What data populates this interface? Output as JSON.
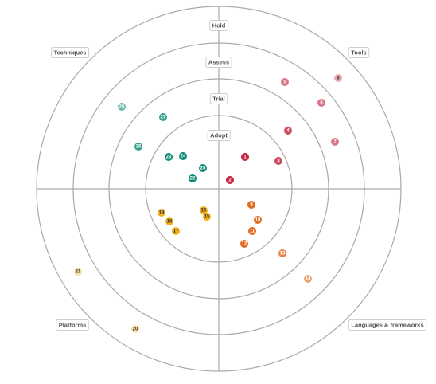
{
  "rings": [
    "Adopt",
    "Trial",
    "Assess",
    "Hold"
  ],
  "quadrants": [
    {
      "name": "Tools",
      "color": "#c4223a"
    },
    {
      "name": "Languages & frameworks",
      "color": "#e06a1f"
    },
    {
      "name": "Platforms",
      "color": "#f2ae1b"
    },
    {
      "name": "Techniques",
      "color": "#0b8b74"
    }
  ],
  "blips": [
    {
      "id": "1",
      "quadrant": "Tools",
      "ring": "Adopt"
    },
    {
      "id": "2",
      "quadrant": "Tools",
      "ring": "Adopt"
    },
    {
      "id": "3",
      "quadrant": "Tools",
      "ring": "Trial"
    },
    {
      "id": "4",
      "quadrant": "Tools",
      "ring": "Trial"
    },
    {
      "id": "5",
      "quadrant": "Tools",
      "ring": "Assess"
    },
    {
      "id": "6",
      "quadrant": "Tools",
      "ring": "Assess"
    },
    {
      "id": "7",
      "quadrant": "Tools",
      "ring": "Assess"
    },
    {
      "id": "8",
      "quadrant": "Tools",
      "ring": "Hold"
    },
    {
      "id": "9",
      "quadrant": "Languages & frameworks",
      "ring": "Adopt"
    },
    {
      "id": "10",
      "quadrant": "Languages & frameworks",
      "ring": "Adopt"
    },
    {
      "id": "11",
      "quadrant": "Languages & frameworks",
      "ring": "Adopt"
    },
    {
      "id": "12",
      "quadrant": "Languages & frameworks",
      "ring": "Adopt"
    },
    {
      "id": "13",
      "quadrant": "Languages & frameworks",
      "ring": "Trial"
    },
    {
      "id": "14",
      "quadrant": "Languages & frameworks",
      "ring": "Assess"
    },
    {
      "id": "15",
      "quadrant": "Platforms",
      "ring": "Adopt"
    },
    {
      "id": "16",
      "quadrant": "Platforms",
      "ring": "Adopt"
    },
    {
      "id": "17",
      "quadrant": "Platforms",
      "ring": "Adopt"
    },
    {
      "id": "18",
      "quadrant": "Platforms",
      "ring": "Adopt"
    },
    {
      "id": "19",
      "quadrant": "Platforms",
      "ring": "Adopt"
    },
    {
      "id": "20",
      "quadrant": "Platforms",
      "ring": "Hold"
    },
    {
      "id": "21",
      "quadrant": "Platforms",
      "ring": "Hold"
    },
    {
      "id": "22",
      "quadrant": "Techniques",
      "ring": "Adopt"
    },
    {
      "id": "23",
      "quadrant": "Techniques",
      "ring": "Adopt"
    },
    {
      "id": "24",
      "quadrant": "Techniques",
      "ring": "Adopt"
    },
    {
      "id": "25",
      "quadrant": "Techniques",
      "ring": "Adopt"
    },
    {
      "id": "26",
      "quadrant": "Techniques",
      "ring": "Trial"
    },
    {
      "id": "27",
      "quadrant": "Techniques",
      "ring": "Trial"
    },
    {
      "id": "28",
      "quadrant": "Techniques",
      "ring": "Assess"
    }
  ]
}
